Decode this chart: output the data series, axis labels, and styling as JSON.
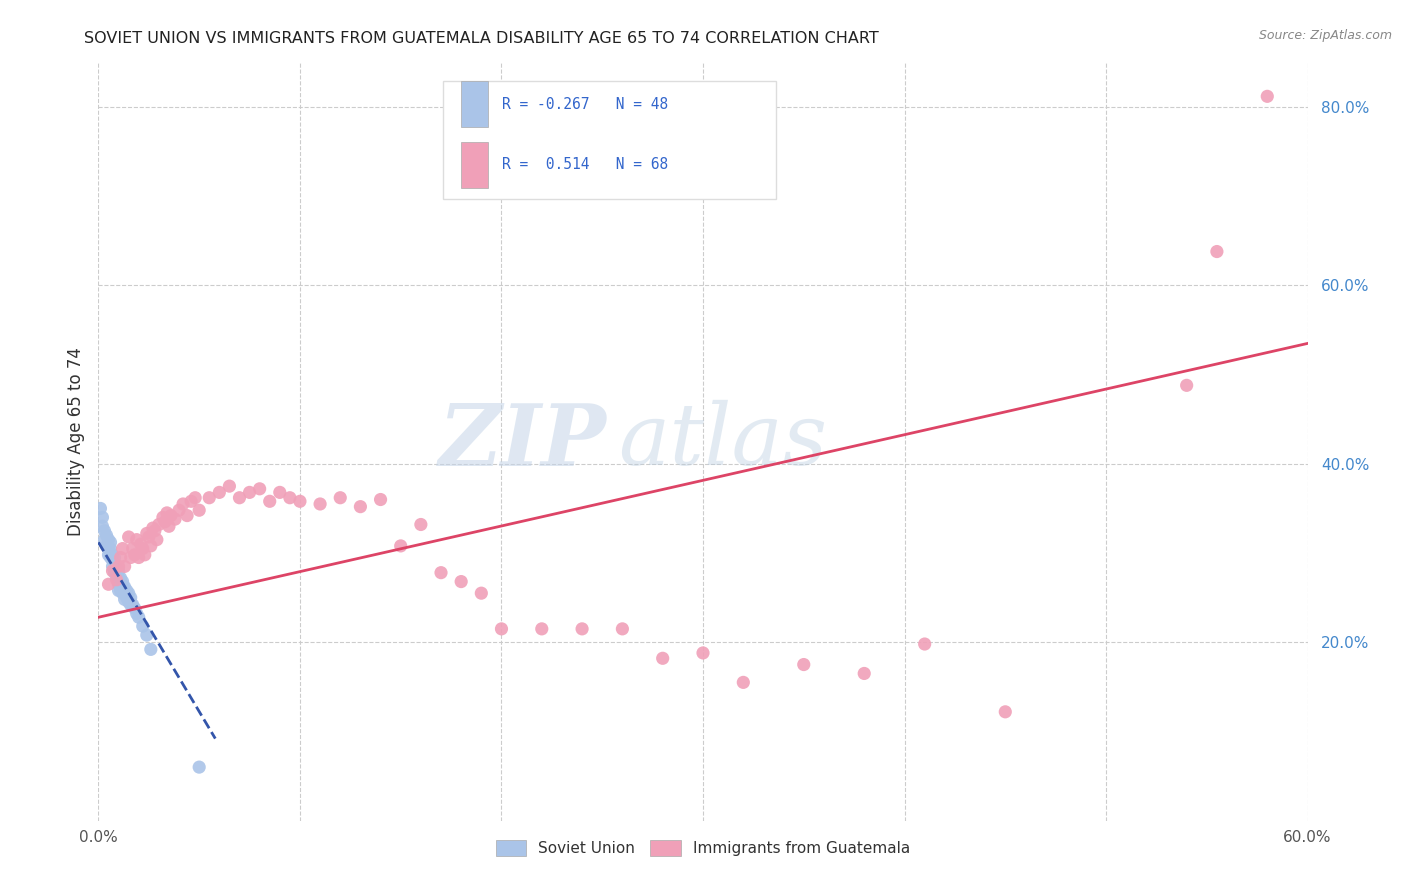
{
  "title": "SOVIET UNION VS IMMIGRANTS FROM GUATEMALA DISABILITY AGE 65 TO 74 CORRELATION CHART",
  "source": "Source: ZipAtlas.com",
  "ylabel": "Disability Age 65 to 74",
  "xmin": 0.0,
  "xmax": 0.6,
  "ymin": 0.0,
  "ymax": 0.85,
  "xticks": [
    0.0,
    0.1,
    0.2,
    0.3,
    0.4,
    0.5,
    0.6
  ],
  "xtick_labels": [
    "0.0%",
    "",
    "",
    "",
    "",
    "",
    "60.0%"
  ],
  "yticks_right": [
    0.2,
    0.4,
    0.6,
    0.8
  ],
  "ytick_labels_right": [
    "20.0%",
    "40.0%",
    "60.0%",
    "80.0%"
  ],
  "color_soviet": "#aac4e8",
  "color_guatemala": "#f0a0b8",
  "color_soviet_line": "#3355aa",
  "color_guatemala_line": "#dd4466",
  "color_r_text": "#3366cc",
  "watermark_zip": "ZIP",
  "watermark_atlas": "atlas",
  "background_color": "#ffffff",
  "soviet_scatter_x": [
    0.001,
    0.002,
    0.002,
    0.003,
    0.003,
    0.004,
    0.004,
    0.005,
    0.005,
    0.005,
    0.006,
    0.006,
    0.006,
    0.007,
    0.007,
    0.007,
    0.008,
    0.008,
    0.008,
    0.009,
    0.009,
    0.01,
    0.01,
    0.01,
    0.01,
    0.011,
    0.011,
    0.011,
    0.012,
    0.012,
    0.012,
    0.013,
    0.013,
    0.013,
    0.014,
    0.014,
    0.015,
    0.015,
    0.016,
    0.016,
    0.017,
    0.018,
    0.019,
    0.02,
    0.022,
    0.024,
    0.026,
    0.05
  ],
  "soviet_scatter_y": [
    0.35,
    0.34,
    0.33,
    0.325,
    0.315,
    0.32,
    0.308,
    0.315,
    0.305,
    0.298,
    0.312,
    0.305,
    0.295,
    0.298,
    0.292,
    0.285,
    0.295,
    0.285,
    0.278,
    0.282,
    0.275,
    0.28,
    0.272,
    0.265,
    0.258,
    0.272,
    0.265,
    0.258,
    0.268,
    0.262,
    0.255,
    0.262,
    0.255,
    0.248,
    0.258,
    0.25,
    0.255,
    0.245,
    0.25,
    0.242,
    0.242,
    0.238,
    0.232,
    0.228,
    0.218,
    0.208,
    0.192,
    0.06
  ],
  "guatemala_scatter_x": [
    0.005,
    0.007,
    0.009,
    0.01,
    0.011,
    0.012,
    0.013,
    0.015,
    0.016,
    0.017,
    0.018,
    0.019,
    0.02,
    0.021,
    0.022,
    0.023,
    0.024,
    0.025,
    0.026,
    0.027,
    0.028,
    0.029,
    0.03,
    0.032,
    0.033,
    0.034,
    0.035,
    0.036,
    0.038,
    0.04,
    0.042,
    0.044,
    0.046,
    0.048,
    0.05,
    0.055,
    0.06,
    0.065,
    0.07,
    0.075,
    0.08,
    0.085,
    0.09,
    0.095,
    0.1,
    0.11,
    0.12,
    0.13,
    0.14,
    0.15,
    0.16,
    0.17,
    0.18,
    0.19,
    0.2,
    0.22,
    0.24,
    0.26,
    0.28,
    0.3,
    0.32,
    0.35,
    0.38,
    0.41,
    0.45,
    0.54,
    0.555,
    0.58
  ],
  "guatemala_scatter_y": [
    0.265,
    0.28,
    0.27,
    0.285,
    0.295,
    0.305,
    0.285,
    0.318,
    0.295,
    0.305,
    0.298,
    0.315,
    0.295,
    0.31,
    0.305,
    0.298,
    0.322,
    0.318,
    0.308,
    0.328,
    0.325,
    0.315,
    0.332,
    0.34,
    0.335,
    0.345,
    0.33,
    0.342,
    0.338,
    0.348,
    0.355,
    0.342,
    0.358,
    0.362,
    0.348,
    0.362,
    0.368,
    0.375,
    0.362,
    0.368,
    0.372,
    0.358,
    0.368,
    0.362,
    0.358,
    0.355,
    0.362,
    0.352,
    0.36,
    0.308,
    0.332,
    0.278,
    0.268,
    0.255,
    0.215,
    0.215,
    0.215,
    0.215,
    0.182,
    0.188,
    0.155,
    0.175,
    0.165,
    0.198,
    0.122,
    0.488,
    0.638,
    0.812
  ],
  "soviet_trend_x": [
    0.0,
    0.058
  ],
  "soviet_trend_y": [
    0.312,
    0.092
  ],
  "guatemala_trend_x": [
    0.0,
    0.6
  ],
  "guatemala_trend_y": [
    0.228,
    0.535
  ]
}
